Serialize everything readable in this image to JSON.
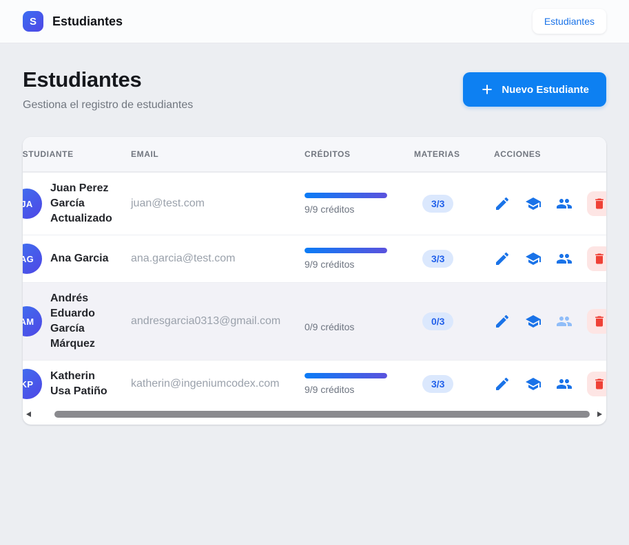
{
  "navbar": {
    "logo_letter": "S",
    "app_title": "Estudiantes",
    "nav_link": "Estudiantes"
  },
  "page_header": {
    "title": "Estudiantes",
    "subtitle": "Gestiona el registro de estudiantes",
    "new_student_button": "Nuevo Estudiante"
  },
  "table": {
    "columns": {
      "student": "ESTUDIANTE",
      "email": "EMAIL",
      "credits": "CRÉDITOS",
      "subjects": "MATERIAS",
      "actions": "ACCIONES"
    },
    "rows": [
      {
        "initials": "JA",
        "name": "Juan Perez García Actualizado",
        "email": "juan@test.com",
        "credits_label": "9/9 créditos",
        "credits_pct": 100,
        "subjects_badge": "3/3",
        "highlighted": false,
        "people_disabled": false
      },
      {
        "initials": "AG",
        "name": "Ana Garcia",
        "email": "ana.garcia@test.com",
        "credits_label": "9/9 créditos",
        "credits_pct": 100,
        "subjects_badge": "3/3",
        "highlighted": false,
        "people_disabled": false
      },
      {
        "initials": "AM",
        "name": "Andrés Eduardo García Márquez",
        "email": "andresgarcia0313@gmail.com",
        "credits_label": "0/9 créditos",
        "credits_pct": 0,
        "subjects_badge": "0/3",
        "highlighted": true,
        "people_disabled": true
      },
      {
        "initials": "KP",
        "name": "Katherin Usa Patiño",
        "email": "katherin@ingeniumcodex.com",
        "credits_label": "9/9 créditos",
        "credits_pct": 100,
        "subjects_badge": "3/3",
        "highlighted": false,
        "people_disabled": false
      }
    ]
  },
  "icons": {
    "edit": "pencil-icon",
    "courses": "graduation-cap-icon",
    "groups": "people-icon",
    "delete": "trash-icon",
    "add": "plus-icon"
  },
  "colors": {
    "accent_blue": "#0d80f2",
    "icon_blue": "#1a73e8",
    "icon_blue_disabled": "#90bdf8",
    "danger_red": "#ef4136",
    "danger_bg": "#fde5e4",
    "badge_bg": "#dbe8fd",
    "badge_text": "#2160ea",
    "progress_gradient": [
      "#0b7cf6",
      "#5a52dd"
    ],
    "avatar_gradient": [
      "#3d74f0",
      "#4f46e5"
    ],
    "page_bg": "#eceef2",
    "row_highlight": "#f2f2f7"
  }
}
